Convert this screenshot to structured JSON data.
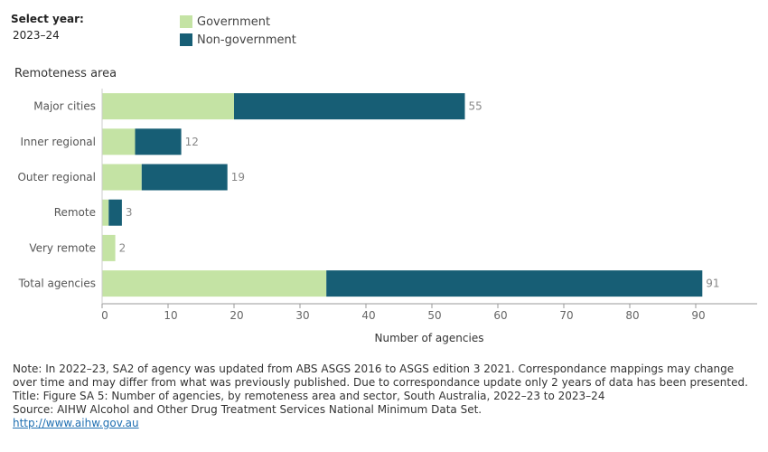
{
  "filter": {
    "label": "Select year:",
    "value": "2023–24"
  },
  "colors": {
    "government": "#c4e3a4",
    "non_government": "#175e75",
    "axis": "#999999",
    "value_label": "#888888"
  },
  "chart_data": {
    "type": "bar",
    "orientation": "horizontal",
    "stacked": true,
    "y_heading": "Remoteness area",
    "xlabel": "Number of agencies",
    "categories": [
      "Major cities",
      "Inner regional",
      "Outer regional",
      "Remote",
      "Very remote",
      "Total agencies"
    ],
    "series": [
      {
        "name": "Government",
        "values": [
          20,
          5,
          6,
          1,
          2,
          34
        ]
      },
      {
        "name": "Non-government",
        "values": [
          35,
          7,
          13,
          2,
          0,
          57
        ]
      }
    ],
    "totals": [
      "55",
      "12",
      "19",
      "3",
      "2",
      "91"
    ],
    "xticks": [
      0,
      10,
      20,
      30,
      40,
      50,
      60,
      70,
      80,
      90
    ],
    "xlim": [
      0,
      99
    ],
    "legend_position": "top",
    "grid": false
  },
  "notes": {
    "note": "Note: In 2022–23, SA2 of agency was updated from ABS ASGS 2016 to ASGS edition 3 2021. Correspondance mappings may change over time and may differ from what was previously published. Due to correspondance update only 2 years of data has been presented.",
    "title": "Title: Figure SA 5: Number of agencies, by remoteness area and sector, South Australia, 2022–23 to 2023–24",
    "source": "Source: AIHW Alcohol and Other Drug Treatment Services National Minimum Data Set.",
    "link": "http://www.aihw.gov.au"
  }
}
